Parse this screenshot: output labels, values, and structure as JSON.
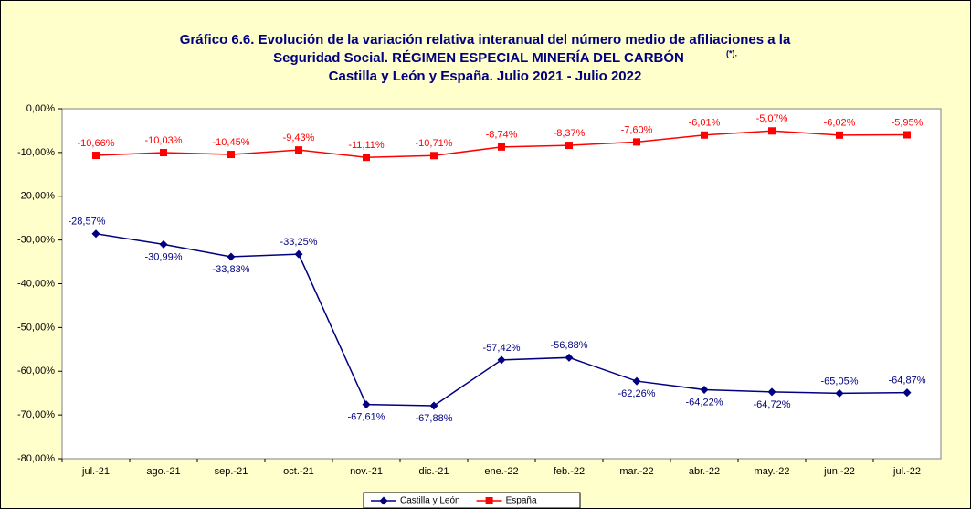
{
  "chart_data": {
    "type": "line",
    "title": [
      "Gráfico 6.6. Evolución de la variación relativa interanual del número medio de  afiliaciones a la",
      "Seguridad Social. RÉGIMEN ESPECIAL MINERÍA DEL CARBÓN",
      "Castilla y León y España. Julio 2021 - Julio 2022"
    ],
    "title_superscript": "(*).",
    "categories": [
      "jul.-21",
      "ago.-21",
      "sep.-21",
      "oct.-21",
      "nov.-21",
      "dic.-21",
      "ene.-22",
      "feb.-22",
      "mar.-22",
      "abr.-22",
      "may.-22",
      "jun.-22",
      "jul.-22"
    ],
    "series": [
      {
        "name": "Castilla y León",
        "color": "#000080",
        "marker": "diamond",
        "values": [
          -28.57,
          -30.99,
          -33.83,
          -33.25,
          -67.61,
          -67.88,
          -57.42,
          -56.88,
          -62.26,
          -64.22,
          -64.72,
          -65.05,
          -64.87
        ],
        "value_labels": [
          "-28,57%",
          "-30,99%",
          "-33,83%",
          "-33,25%",
          "-67,61%",
          "-67,88%",
          "-57,42%",
          "-56,88%",
          "-62,26%",
          "-64,22%",
          "-64,72%",
          "-65,05%",
          "-64,87%"
        ]
      },
      {
        "name": "España",
        "color": "#ff0000",
        "marker": "square",
        "values": [
          -10.66,
          -10.03,
          -10.45,
          -9.43,
          -11.11,
          -10.71,
          -8.74,
          -8.37,
          -7.6,
          -6.01,
          -5.07,
          -6.02,
          -5.95
        ],
        "value_labels": [
          "-10,66%",
          "-10,03%",
          "-10,45%",
          "-9,43%",
          "-11,11%",
          "-10,71%",
          "-8,74%",
          "-8,37%",
          "-7,60%",
          "-6,01%",
          "-5,07%",
          "-6,02%",
          "-5,95%"
        ]
      }
    ],
    "ylim": [
      -80,
      0
    ],
    "yticks": [
      {
        "value": 0,
        "label": "0,00%"
      },
      {
        "value": -10,
        "label": "-10,00%"
      },
      {
        "value": -20,
        "label": "-20,00%"
      },
      {
        "value": -30,
        "label": "-30,00%"
      },
      {
        "value": -40,
        "label": "-40,00%"
      },
      {
        "value": -50,
        "label": "-50,00%"
      },
      {
        "value": -60,
        "label": "-60,00%"
      },
      {
        "value": -70,
        "label": "-70,00%"
      },
      {
        "value": -80,
        "label": "-80,00%"
      }
    ],
    "grid": false,
    "legend": "bottom"
  }
}
